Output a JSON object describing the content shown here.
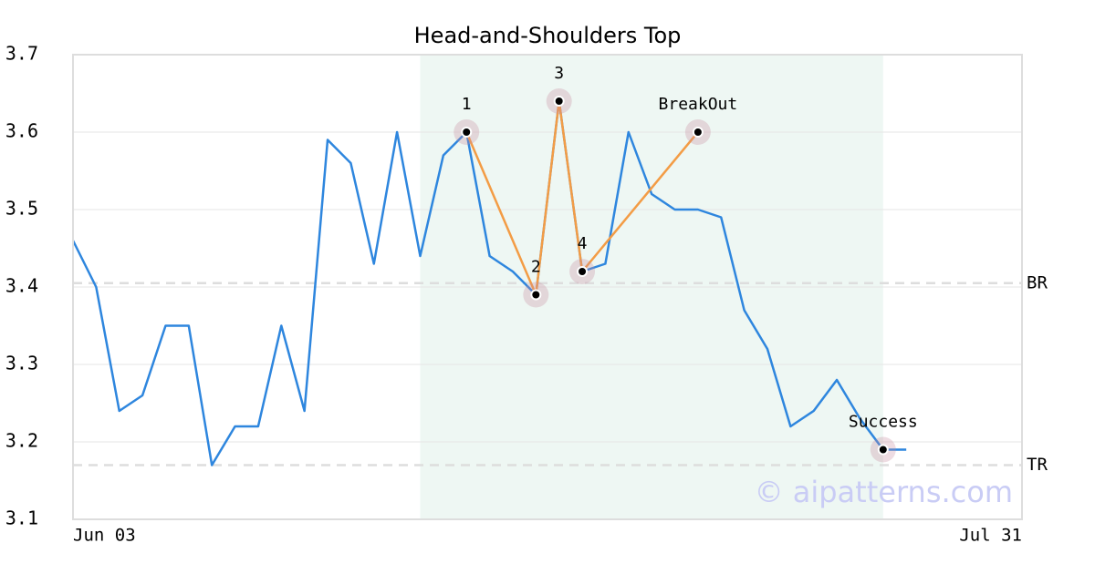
{
  "chart_data": {
    "type": "line",
    "title": "Head-and-Shoulders Top",
    "x": [
      0,
      1,
      2,
      3,
      4,
      5,
      6,
      7,
      8,
      9,
      10,
      11,
      12,
      13,
      14,
      15,
      16,
      17,
      18,
      19,
      20,
      21,
      22,
      23,
      24,
      25,
      26,
      27,
      28,
      29,
      30,
      31,
      32,
      33,
      34,
      35,
      36
    ],
    "values": [
      3.46,
      3.4,
      3.24,
      3.26,
      3.35,
      3.35,
      3.17,
      3.22,
      3.22,
      3.35,
      3.24,
      3.59,
      3.56,
      3.43,
      3.6,
      3.44,
      3.57,
      3.6,
      3.44,
      3.42,
      3.39,
      3.64,
      3.42,
      3.43,
      3.6,
      3.52,
      3.5,
      3.5,
      3.49,
      3.37,
      3.32,
      3.22,
      3.24,
      3.28,
      3.23,
      3.19,
      3.19
    ],
    "color": "#2e86de",
    "xlim": [
      0,
      41
    ],
    "xticks": [
      {
        "value": 0,
        "label": "Jun 03"
      },
      {
        "value": 41,
        "label": "Jul 31"
      }
    ],
    "ylim": [
      3.1,
      3.7
    ],
    "yticks": [
      3.1,
      3.2,
      3.3,
      3.4,
      3.5,
      3.6,
      3.7
    ],
    "grid": true,
    "highlight_range": [
      15,
      35
    ],
    "pattern_color": "#f39c45",
    "pattern_points": [
      {
        "label": "1",
        "x": 17,
        "y": 3.6
      },
      {
        "label": "2",
        "x": 20,
        "y": 3.39
      },
      {
        "label": "3",
        "x": 21,
        "y": 3.64
      },
      {
        "label": "4",
        "x": 22,
        "y": 3.42
      },
      {
        "label": "BreakOut",
        "x": 27,
        "y": 3.6
      }
    ],
    "outcome_point": {
      "label": "Success",
      "x": 35,
      "y": 3.19
    },
    "levels": [
      {
        "label": "BR",
        "value": 3.405
      },
      {
        "label": "TR",
        "value": 3.17
      }
    ],
    "watermark": "© aipatterns.com"
  }
}
